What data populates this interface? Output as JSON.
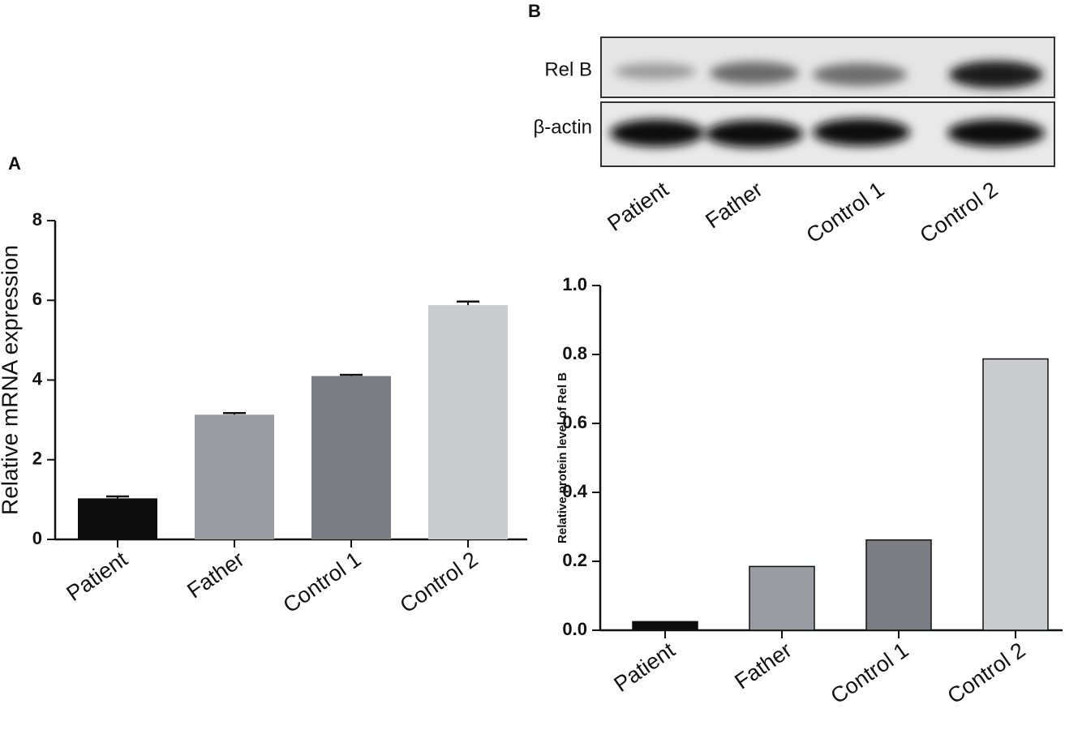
{
  "panel_labels": [
    "A",
    "B"
  ],
  "blot": {
    "rows": [
      "Rel B",
      "β-actin"
    ],
    "lanes": [
      "Patient",
      "Father",
      "Control 1",
      "Control 2"
    ]
  },
  "chart_data": [
    {
      "type": "bar",
      "y_label": "Relative mRNA expression",
      "categories": [
        "Patient",
        "Father",
        "Control 1",
        "Control 2"
      ],
      "values": [
        1.03,
        3.13,
        4.1,
        5.88
      ],
      "errors": [
        0.05,
        0.04,
        0.03,
        0.09
      ],
      "colors": [
        "#0d0d0d",
        "#9a9ca4",
        "#7c7d82",
        "#cbcccf"
      ],
      "ylim": [
        0,
        8
      ],
      "yticks": [
        0,
        2,
        4,
        6,
        8
      ]
    },
    {
      "type": "bar",
      "y_label": "Relative protein level of Rel B",
      "categories": [
        "Patient",
        "Father",
        "Control 1",
        "Control 2"
      ],
      "values": [
        0.025,
        0.185,
        0.262,
        0.787
      ],
      "colors": [
        "#0d0d0d",
        "#9a9ca4",
        "#7c7d82",
        "#cbcccf"
      ],
      "ylim": [
        0,
        1
      ],
      "yticks": [
        {
          "value": 0,
          "label": "0.0"
        },
        0.2,
        0.4,
        0.6,
        0.8,
        {
          "value": 1,
          "label": "1.0"
        }
      ]
    }
  ]
}
